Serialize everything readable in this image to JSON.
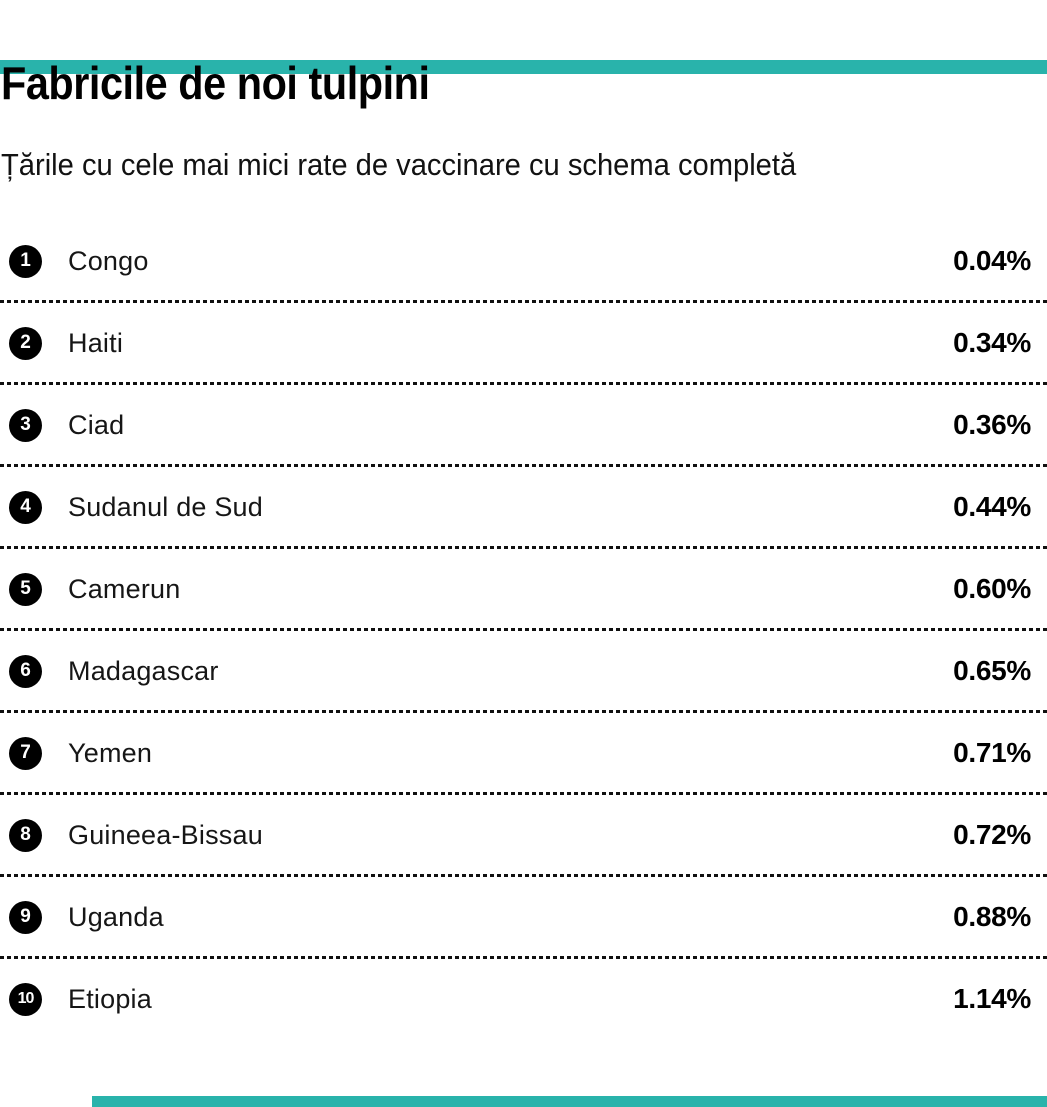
{
  "page": {
    "accent_color": "#29b3ab"
  },
  "header": {
    "title": "Fabricile de noi tulpini",
    "subtitle": "Țările cu cele mai mici rate de vaccinare cu schema completă"
  },
  "chart_data": {
    "type": "table",
    "title": "Fabricile de noi tulpini",
    "subtitle": "Țările cu cele mai mici rate de vaccinare cu schema completă",
    "description": "Ranked list of countries with the lowest full-schedule vaccination rates",
    "value_unit": "%",
    "columns": [
      "rank",
      "country",
      "value"
    ],
    "values_numeric": [
      0.04,
      0.34,
      0.36,
      0.44,
      0.6,
      0.65,
      0.71,
      0.72,
      0.88,
      1.14
    ],
    "rows": [
      {
        "rank": "1",
        "country": "Congo",
        "value": "0.04%"
      },
      {
        "rank": "2",
        "country": "Haiti",
        "value": "0.34%"
      },
      {
        "rank": "3",
        "country": "Ciad",
        "value": "0.36%"
      },
      {
        "rank": "4",
        "country": "Sudanul de Sud",
        "value": "0.44%"
      },
      {
        "rank": "5",
        "country": "Camerun",
        "value": "0.60%"
      },
      {
        "rank": "6",
        "country": "Madagascar",
        "value": "0.65%"
      },
      {
        "rank": "7",
        "country": "Yemen",
        "value": "0.71%"
      },
      {
        "rank": "8",
        "country": "Guineea-Bissau",
        "value": "0.72%"
      },
      {
        "rank": "9",
        "country": "Uganda",
        "value": "0.88%"
      },
      {
        "rank": "10",
        "country": "Etiopia",
        "value": "1.14%"
      }
    ]
  }
}
